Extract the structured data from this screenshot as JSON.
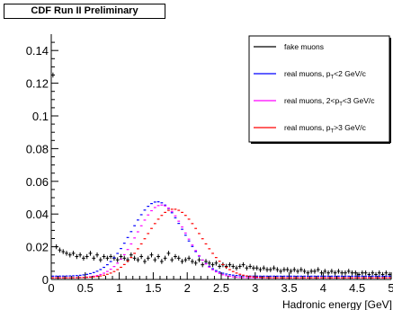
{
  "chart_data": {
    "type": "line",
    "header": "CDF Run II Preliminary",
    "xlabel": "Hadronic energy [GeV]",
    "ylabel": "",
    "xlim": [
      0,
      5
    ],
    "ylim": [
      0,
      0.15
    ],
    "x_ticks": [
      "0",
      "0.5",
      "1",
      "1.5",
      "2",
      "2.5",
      "3",
      "3.5",
      "4",
      "4.5",
      "5"
    ],
    "y_ticks": [
      "0",
      "0.02",
      "0.04",
      "0.06",
      "0.08",
      "0.1",
      "0.12",
      "0.14"
    ],
    "legend_position": "top-right",
    "grid": false,
    "series": [
      {
        "name": "fake muons",
        "style": "error-points",
        "color": "#000000",
        "x": [
          0.025,
          0.075,
          0.125,
          0.175,
          0.225,
          0.275,
          0.325,
          0.375,
          0.425,
          0.475,
          0.525,
          0.575,
          0.625,
          0.675,
          0.725,
          0.775,
          0.825,
          0.875,
          0.925,
          0.975,
          1.025,
          1.075,
          1.125,
          1.175,
          1.225,
          1.275,
          1.325,
          1.375,
          1.425,
          1.475,
          1.525,
          1.575,
          1.625,
          1.675,
          1.725,
          1.775,
          1.825,
          1.875,
          1.925,
          1.975,
          2.025,
          2.075,
          2.125,
          2.175,
          2.225,
          2.275,
          2.325,
          2.375,
          2.425,
          2.475,
          2.525,
          2.575,
          2.625,
          2.675,
          2.725,
          2.775,
          2.825,
          2.875,
          2.925,
          2.975,
          3.025,
          3.075,
          3.125,
          3.175,
          3.225,
          3.275,
          3.325,
          3.375,
          3.425,
          3.475,
          3.525,
          3.575,
          3.625,
          3.675,
          3.725,
          3.775,
          3.825,
          3.875,
          3.925,
          3.975,
          4.025,
          4.075,
          4.125,
          4.175,
          4.225,
          4.275,
          4.325,
          4.375,
          4.425,
          4.475,
          4.525,
          4.575,
          4.625,
          4.675,
          4.725,
          4.775,
          4.825,
          4.875,
          4.925,
          4.975
        ],
        "y": [
          0.125,
          0.02,
          0.018,
          0.017,
          0.016,
          0.015,
          0.016,
          0.014,
          0.015,
          0.013,
          0.014,
          0.016,
          0.013,
          0.015,
          0.012,
          0.014,
          0.013,
          0.014,
          0.013,
          0.012,
          0.014,
          0.013,
          0.012,
          0.015,
          0.013,
          0.012,
          0.014,
          0.011,
          0.013,
          0.015,
          0.012,
          0.014,
          0.011,
          0.013,
          0.016,
          0.012,
          0.014,
          0.013,
          0.011,
          0.012,
          0.013,
          0.011,
          0.01,
          0.012,
          0.009,
          0.011,
          0.01,
          0.009,
          0.01,
          0.008,
          0.009,
          0.008,
          0.009,
          0.008,
          0.007,
          0.008,
          0.009,
          0.007,
          0.008,
          0.007,
          0.007,
          0.006,
          0.007,
          0.006,
          0.006,
          0.007,
          0.006,
          0.005,
          0.006,
          0.006,
          0.005,
          0.006,
          0.005,
          0.006,
          0.005,
          0.004,
          0.005,
          0.005,
          0.006,
          0.004,
          0.005,
          0.004,
          0.005,
          0.004,
          0.005,
          0.004,
          0.004,
          0.005,
          0.004,
          0.004,
          0.003,
          0.004,
          0.004,
          0.003,
          0.004,
          0.003,
          0.004,
          0.003,
          0.004,
          0.003
        ],
        "err": 0.0015
      },
      {
        "name": "real muons, p_T<2 GeV/c",
        "style": "dashed-steps",
        "color": "#0000ff",
        "mean": 1.56,
        "sigma": 0.38,
        "peak": 0.0455,
        "tail": 0.002
      },
      {
        "name": "real muons, 2<p_T<3 GeV/c",
        "style": "dashed-steps",
        "color": "#ff00ff",
        "mean": 1.62,
        "sigma": 0.36,
        "peak": 0.0445,
        "tail": 0.001
      },
      {
        "name": "real muons, p_T>3 GeV/c",
        "style": "dashed-steps",
        "color": "#ff0000",
        "mean": 1.8,
        "sigma": 0.4,
        "peak": 0.042,
        "tail": 0.001
      }
    ]
  },
  "legend": {
    "items": [
      {
        "name": "fake-muons",
        "color": "#000000",
        "text_main": "fake muons",
        "sub": "",
        "text_after": ""
      },
      {
        "name": "real-muons-low",
        "color": "#0000ff",
        "text_main": "real muons, p",
        "sub": "T",
        "text_after": "<2 GeV/c"
      },
      {
        "name": "real-muons-mid",
        "color": "#ff00ff",
        "text_main": "real muons, 2<p",
        "sub": "T",
        "text_after": "<3 GeV/c"
      },
      {
        "name": "real-muons-high",
        "color": "#ff0000",
        "text_main": "real muons, p",
        "sub": "T",
        "text_after": ">3 GeV/c"
      }
    ]
  }
}
